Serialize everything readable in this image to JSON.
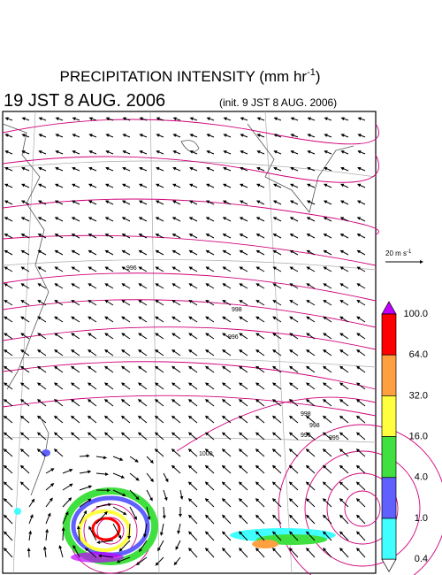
{
  "title": {
    "text": "PRECIPITATION INTENSITY (mm hr",
    "sup": "-1",
    "close": ")"
  },
  "valid_time": "19 JST 8 AUG. 2006",
  "init_time": "(init. 9 JST 8 AUG. 2006)",
  "reference_vector": {
    "text": "20 m s",
    "sup": "-1"
  },
  "isobar_labels": [
    "996",
    "998",
    "1000",
    "996",
    "998",
    "998",
    "996",
    "995"
  ],
  "colorbar": {
    "top_color": "#c000ff",
    "bottom_color": "#ffffff",
    "bands": [
      {
        "color": "#ff0000"
      },
      {
        "color": "#ffa040"
      },
      {
        "color": "#ffff40"
      },
      {
        "color": "#40e040"
      },
      {
        "color": "#6060ff"
      },
      {
        "color": "#40ffff"
      }
    ],
    "labels": [
      "100.0",
      "64.0",
      "32.0",
      "16.0",
      "4.0",
      "1.0",
      "0.4"
    ]
  }
}
